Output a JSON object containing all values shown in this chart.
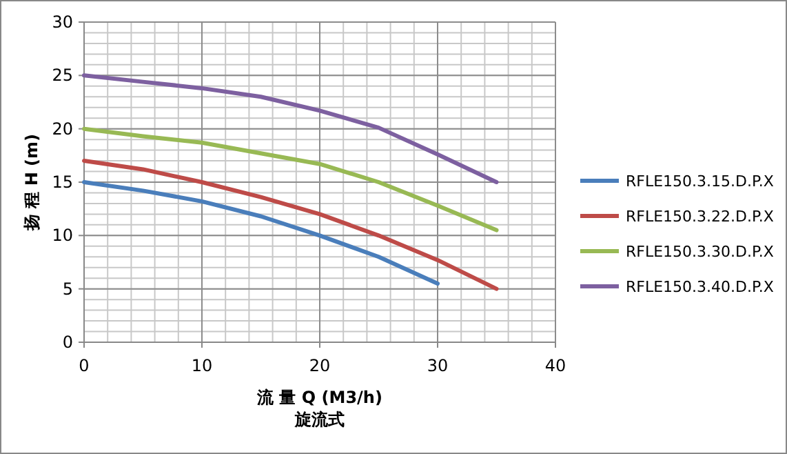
{
  "chart_data": {
    "type": "line",
    "xlabel": "流 量 Q (M3/h)",
    "ylabel": "扬 程 H (m)",
    "annotations": [
      "旋流式"
    ],
    "x": [
      0,
      5,
      10,
      15,
      20,
      25,
      30,
      35
    ],
    "series": [
      {
        "name": "RFLE150.3.15.D.P.X",
        "color": "#4a7ebb",
        "values": [
          15,
          14.2,
          13.2,
          11.8,
          10,
          8,
          5.5,
          null
        ]
      },
      {
        "name": "RFLE150.3.22.D.P.X",
        "color": "#be4b48",
        "values": [
          17,
          16.2,
          15,
          13.6,
          12,
          10,
          7.7,
          5
        ]
      },
      {
        "name": "RFLE150.3.30.D.P.X",
        "color": "#98b954",
        "values": [
          20,
          19.3,
          18.7,
          17.7,
          16.7,
          15,
          12.8,
          10.5
        ]
      },
      {
        "name": "RFLE150.3.40.D.P.X",
        "color": "#7d60a0",
        "values": [
          25,
          24.4,
          23.8,
          23,
          21.7,
          20.1,
          17.6,
          15
        ]
      }
    ],
    "xlim": [
      0,
      40
    ],
    "ylim": [
      0,
      30
    ],
    "xticks": [
      0,
      10,
      20,
      30,
      40
    ],
    "yticks": [
      0,
      5,
      10,
      15,
      20,
      25,
      30
    ],
    "grid": true,
    "legend": "right",
    "marker": "none",
    "line_style": "solid"
  }
}
